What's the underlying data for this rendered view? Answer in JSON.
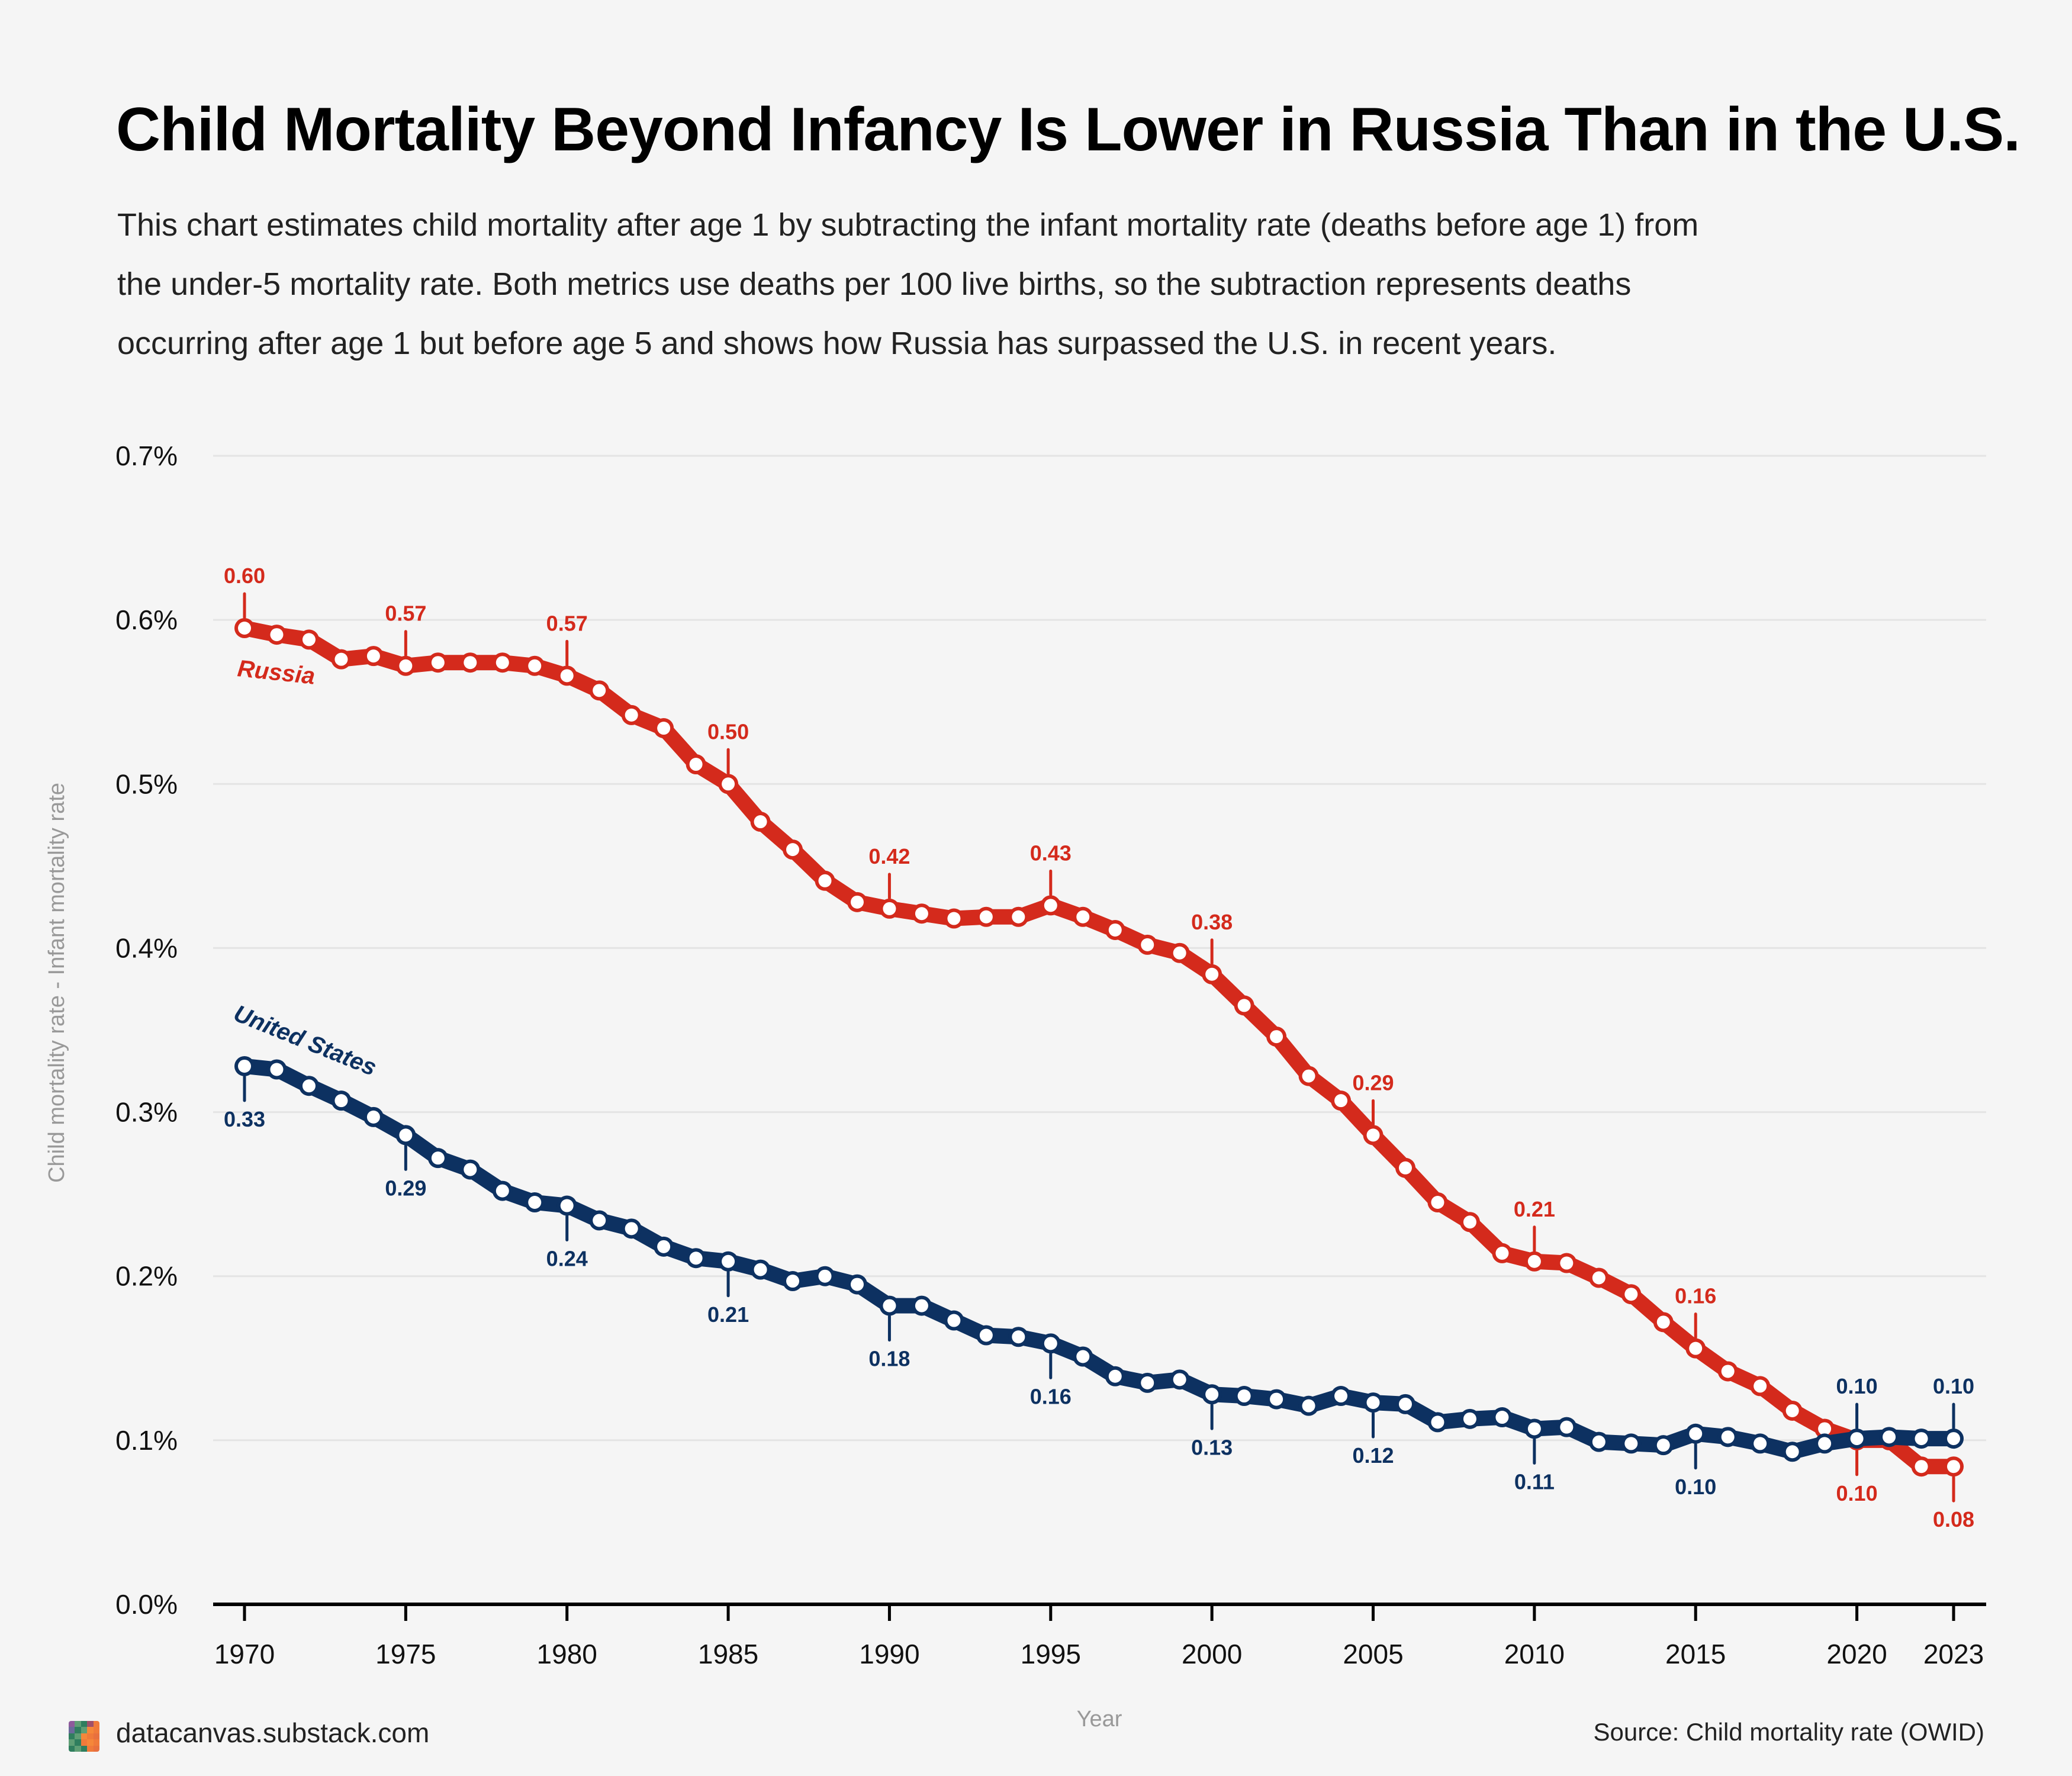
{
  "header": {
    "title": "Child Mortality Beyond Infancy Is Lower in Russia Than in the U.S.",
    "subtitle_lines": [
      "This chart estimates child mortality after age 1 by subtracting the infant mortality rate (deaths before age 1) from",
      "the under-5 mortality rate. Both metrics use deaths per 100 live births, so the subtraction represents deaths",
      "occurring after age 1 but before age 5 and shows how Russia has surpassed the U.S. in recent years."
    ]
  },
  "footer": {
    "site": "datacanvas.substack.com",
    "source": "Source: Child mortality rate (OWID)",
    "logo_colors": [
      "#8e5a9c",
      "#5f9e75",
      "#2f7e5e",
      "#a0506a",
      "#f07a3a",
      "#6a6a9a",
      "#2f7e5e",
      "#5f9e75",
      "#f5873a",
      "#f07a3a",
      "#2f7e5e",
      "#5f9e75",
      "#f5873a",
      "#f07a3a",
      "#e8703f",
      "#5f9e75",
      "#2f7e5e",
      "#f07a3a",
      "#f5873a",
      "#f07a3a",
      "#2f7e5e",
      "#5f9e75",
      "#2f7e5e",
      "#f07a3a",
      "#e8703f"
    ]
  },
  "chart_data": {
    "type": "line",
    "title": "Child Mortality Beyond Infancy Is Lower in Russia Than in the U.S.",
    "xlabel": "Year",
    "ylabel": "Child mortality rate - Infant mortality rate",
    "xlim": [
      1969,
      2024
    ],
    "ylim": [
      0,
      0.7
    ],
    "y_ticks": [
      0,
      0.1,
      0.2,
      0.3,
      0.4,
      0.5,
      0.6,
      0.7
    ],
    "y_tick_labels": [
      "0.0%",
      "0.1%",
      "0.2%",
      "0.3%",
      "0.4%",
      "0.5%",
      "0.6%",
      "0.7%"
    ],
    "x_ticks": [
      1970,
      1975,
      1980,
      1985,
      1990,
      1995,
      2000,
      2005,
      2010,
      2015,
      2020,
      2023
    ],
    "x_tick_labels": [
      "1970",
      "1975",
      "1980",
      "1985",
      "1990",
      "1995",
      "2000",
      "2005",
      "2010",
      "2015",
      "2020",
      "2023"
    ],
    "grid": true,
    "legend": "inline labels near series start",
    "x": [
      1970,
      1971,
      1972,
      1973,
      1974,
      1975,
      1976,
      1977,
      1978,
      1979,
      1980,
      1981,
      1982,
      1983,
      1984,
      1985,
      1986,
      1987,
      1988,
      1989,
      1990,
      1991,
      1992,
      1993,
      1994,
      1995,
      1996,
      1997,
      1998,
      1999,
      2000,
      2001,
      2002,
      2003,
      2004,
      2005,
      2006,
      2007,
      2008,
      2009,
      2010,
      2011,
      2012,
      2013,
      2014,
      2015,
      2016,
      2017,
      2018,
      2019,
      2020,
      2021,
      2022,
      2023
    ],
    "series": [
      {
        "name": "Russia",
        "color": "#d42a1c",
        "values": [
          0.595,
          0.591,
          0.588,
          0.576,
          0.578,
          0.572,
          0.574,
          0.574,
          0.574,
          0.572,
          0.566,
          0.557,
          0.542,
          0.534,
          0.512,
          0.5,
          0.477,
          0.46,
          0.441,
          0.428,
          0.424,
          0.421,
          0.418,
          0.419,
          0.419,
          0.426,
          0.419,
          0.411,
          0.402,
          0.397,
          0.384,
          0.365,
          0.346,
          0.322,
          0.307,
          0.286,
          0.266,
          0.245,
          0.233,
          0.214,
          0.209,
          0.208,
          0.199,
          0.189,
          0.172,
          0.156,
          0.142,
          0.133,
          0.118,
          0.107,
          0.1,
          0.1,
          0.084,
          0.084
        ],
        "annotations": [
          {
            "year": 1970,
            "label": "0.60",
            "side": "above"
          },
          {
            "year": 1975,
            "label": "0.57",
            "side": "above"
          },
          {
            "year": 1980,
            "label": "0.57",
            "side": "above"
          },
          {
            "year": 1985,
            "label": "0.50",
            "side": "above"
          },
          {
            "year": 1990,
            "label": "0.42",
            "side": "above"
          },
          {
            "year": 1995,
            "label": "0.43",
            "side": "above"
          },
          {
            "year": 2000,
            "label": "0.38",
            "side": "above"
          },
          {
            "year": 2005,
            "label": "0.29",
            "side": "above"
          },
          {
            "year": 2010,
            "label": "0.21",
            "side": "above"
          },
          {
            "year": 2015,
            "label": "0.16",
            "side": "above"
          },
          {
            "year": 2020,
            "label": "0.10",
            "side": "below"
          },
          {
            "year": 2023,
            "label": "0.08",
            "side": "below"
          }
        ]
      },
      {
        "name": "United States",
        "color": "#0d3161",
        "values": [
          0.328,
          0.326,
          0.316,
          0.307,
          0.297,
          0.286,
          0.272,
          0.265,
          0.252,
          0.245,
          0.243,
          0.234,
          0.229,
          0.218,
          0.211,
          0.209,
          0.204,
          0.197,
          0.2,
          0.195,
          0.182,
          0.182,
          0.173,
          0.164,
          0.163,
          0.159,
          0.151,
          0.139,
          0.135,
          0.137,
          0.128,
          0.127,
          0.125,
          0.121,
          0.127,
          0.123,
          0.122,
          0.111,
          0.113,
          0.114,
          0.107,
          0.108,
          0.099,
          0.098,
          0.097,
          0.104,
          0.102,
          0.098,
          0.093,
          0.098,
          0.101,
          0.102,
          0.101,
          0.101
        ],
        "annotations": [
          {
            "year": 1970,
            "label": "0.33",
            "side": "below"
          },
          {
            "year": 1975,
            "label": "0.29",
            "side": "below"
          },
          {
            "year": 1980,
            "label": "0.24",
            "side": "below"
          },
          {
            "year": 1985,
            "label": "0.21",
            "side": "below"
          },
          {
            "year": 1990,
            "label": "0.18",
            "side": "below"
          },
          {
            "year": 1995,
            "label": "0.16",
            "side": "below"
          },
          {
            "year": 2000,
            "label": "0.13",
            "side": "below"
          },
          {
            "year": 2005,
            "label": "0.12",
            "side": "below"
          },
          {
            "year": 2010,
            "label": "0.11",
            "side": "below"
          },
          {
            "year": 2015,
            "label": "0.10",
            "side": "below"
          },
          {
            "year": 2020,
            "label": "0.10",
            "side": "above"
          },
          {
            "year": 2023,
            "label": "0.10",
            "side": "above"
          }
        ]
      }
    ]
  }
}
